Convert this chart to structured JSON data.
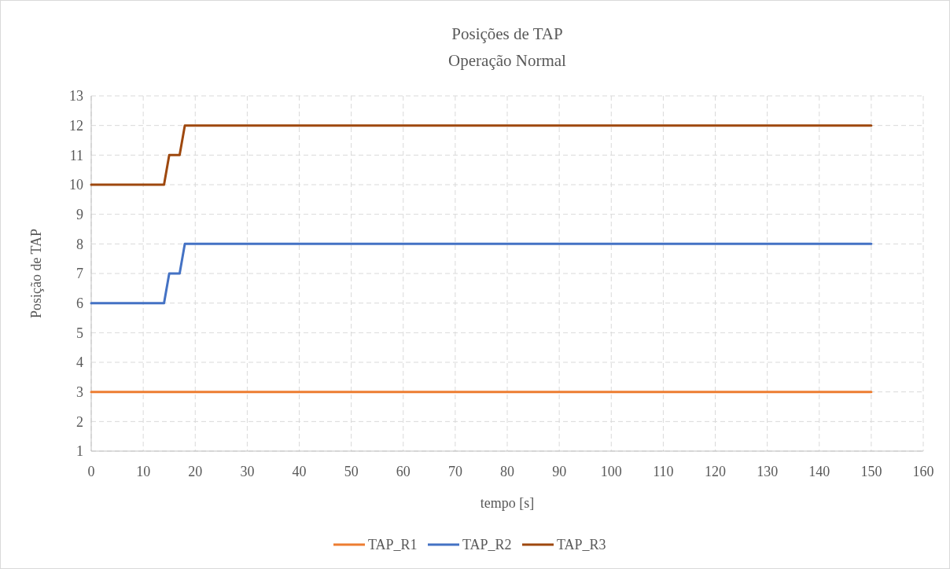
{
  "chart_data": {
    "type": "line",
    "title": "Posições de TAP",
    "subtitle": "Operação Normal",
    "xlabel": "tempo [s]",
    "ylabel": "Posição de TAP",
    "xlim": [
      0,
      160
    ],
    "xticks": [
      0,
      10,
      20,
      30,
      40,
      50,
      60,
      70,
      80,
      90,
      100,
      110,
      120,
      130,
      140,
      150,
      160
    ],
    "ylim": [
      1,
      13
    ],
    "yticks": [
      1,
      2,
      3,
      4,
      5,
      6,
      7,
      8,
      9,
      10,
      11,
      12,
      13
    ],
    "grid": true,
    "legend": "bottom",
    "marker": "none",
    "line_style": "solid",
    "series": [
      {
        "name": "TAP_R1",
        "color": "#ed7d31",
        "x": [
          0,
          150
        ],
        "values": [
          3,
          3
        ]
      },
      {
        "name": "TAP_R2",
        "color": "#4472c4",
        "x": [
          0,
          14,
          15,
          17,
          18,
          150
        ],
        "values": [
          6,
          6,
          7,
          7,
          8,
          8
        ]
      },
      {
        "name": "TAP_R3",
        "color": "#9e480e",
        "x": [
          0,
          14,
          15,
          17,
          18,
          150
        ],
        "values": [
          10,
          10,
          11,
          11,
          12,
          12
        ]
      }
    ]
  }
}
